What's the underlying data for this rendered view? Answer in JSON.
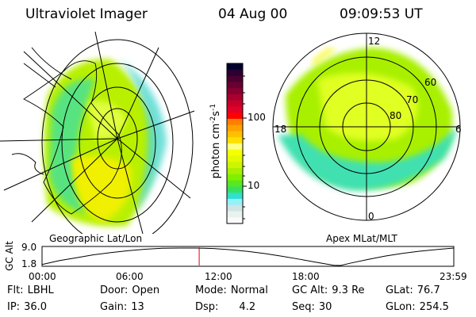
{
  "header": {
    "instrument": "Ultraviolet Imager",
    "date": "04 Aug 00",
    "time": "09:09:53 UT"
  },
  "colorbar": {
    "label": "photon cm",
    "label_sup1": "-2",
    "label_mid": "s",
    "label_sup2": "-1",
    "ticks": [
      "100",
      "10"
    ],
    "colors": [
      "#00002e",
      "#2a0030",
      "#4a0030",
      "#680030",
      "#880030",
      "#a80030",
      "#c80028",
      "#e00028",
      "#ff0000",
      "#ff8000",
      "#ffa000",
      "#ffc000",
      "#ffe000",
      "#ffff80",
      "#f4ff00",
      "#e4fa00",
      "#ccf500",
      "#a8f000",
      "#80f000",
      "#58e820",
      "#38e060",
      "#30e0d0",
      "#98f0f8",
      "#d0e4e4",
      "#e8f2ee",
      "#fafafa"
    ]
  },
  "left_map": {
    "label": "Geographic Lat/Lon"
  },
  "right_map": {
    "label": "Apex MLat/MLT",
    "mlt_labels": [
      "12",
      "18",
      "6",
      "0"
    ],
    "lat_labels": [
      "60",
      "70",
      "80"
    ]
  },
  "altitude_plot": {
    "ylabel": "GC Alt",
    "yticks": [
      "9.0",
      "1.8"
    ],
    "xticks": [
      "00:00",
      "06:00",
      "12:00",
      "18:00",
      "23:59"
    ],
    "current_time_hours": 9.16,
    "curve": [
      [
        0,
        2.2
      ],
      [
        1,
        3.8
      ],
      [
        2,
        5.0
      ],
      [
        3,
        6.2
      ],
      [
        4,
        7.1
      ],
      [
        5,
        7.9
      ],
      [
        6,
        8.5
      ],
      [
        7,
        8.9
      ],
      [
        8,
        9.0
      ],
      [
        9,
        9.0
      ],
      [
        10,
        8.8
      ],
      [
        11,
        8.3
      ],
      [
        12,
        7.6
      ],
      [
        13,
        6.7
      ],
      [
        14,
        5.6
      ],
      [
        15,
        4.4
      ],
      [
        16,
        3.1
      ],
      [
        17,
        1.9
      ],
      [
        17.4,
        1.8
      ],
      [
        18,
        2.8
      ],
      [
        19,
        4.3
      ],
      [
        20,
        5.7
      ],
      [
        21,
        6.8
      ],
      [
        22,
        7.7
      ],
      [
        23,
        8.4
      ],
      [
        24,
        9.0
      ]
    ],
    "yrange": [
      1.8,
      9.0
    ]
  },
  "status": {
    "row1": [
      {
        "k": "Flt:",
        "v": "LBHL"
      },
      {
        "k": "Door:",
        "v": "Open"
      },
      {
        "k": "Mode:",
        "v": "Normal"
      },
      {
        "k": "GC Alt:",
        "v": "9.3 Re"
      },
      {
        "k": "GLat:",
        "v": "76.7"
      }
    ],
    "row2": [
      {
        "k": "IP:",
        "v": "36.0"
      },
      {
        "k": "Gain:",
        "v": "13"
      },
      {
        "k": "Dsp:",
        "v": "4.2"
      },
      {
        "k": "Seq:",
        "v": "30"
      },
      {
        "k": "GLon:",
        "v": "254.5"
      }
    ]
  }
}
